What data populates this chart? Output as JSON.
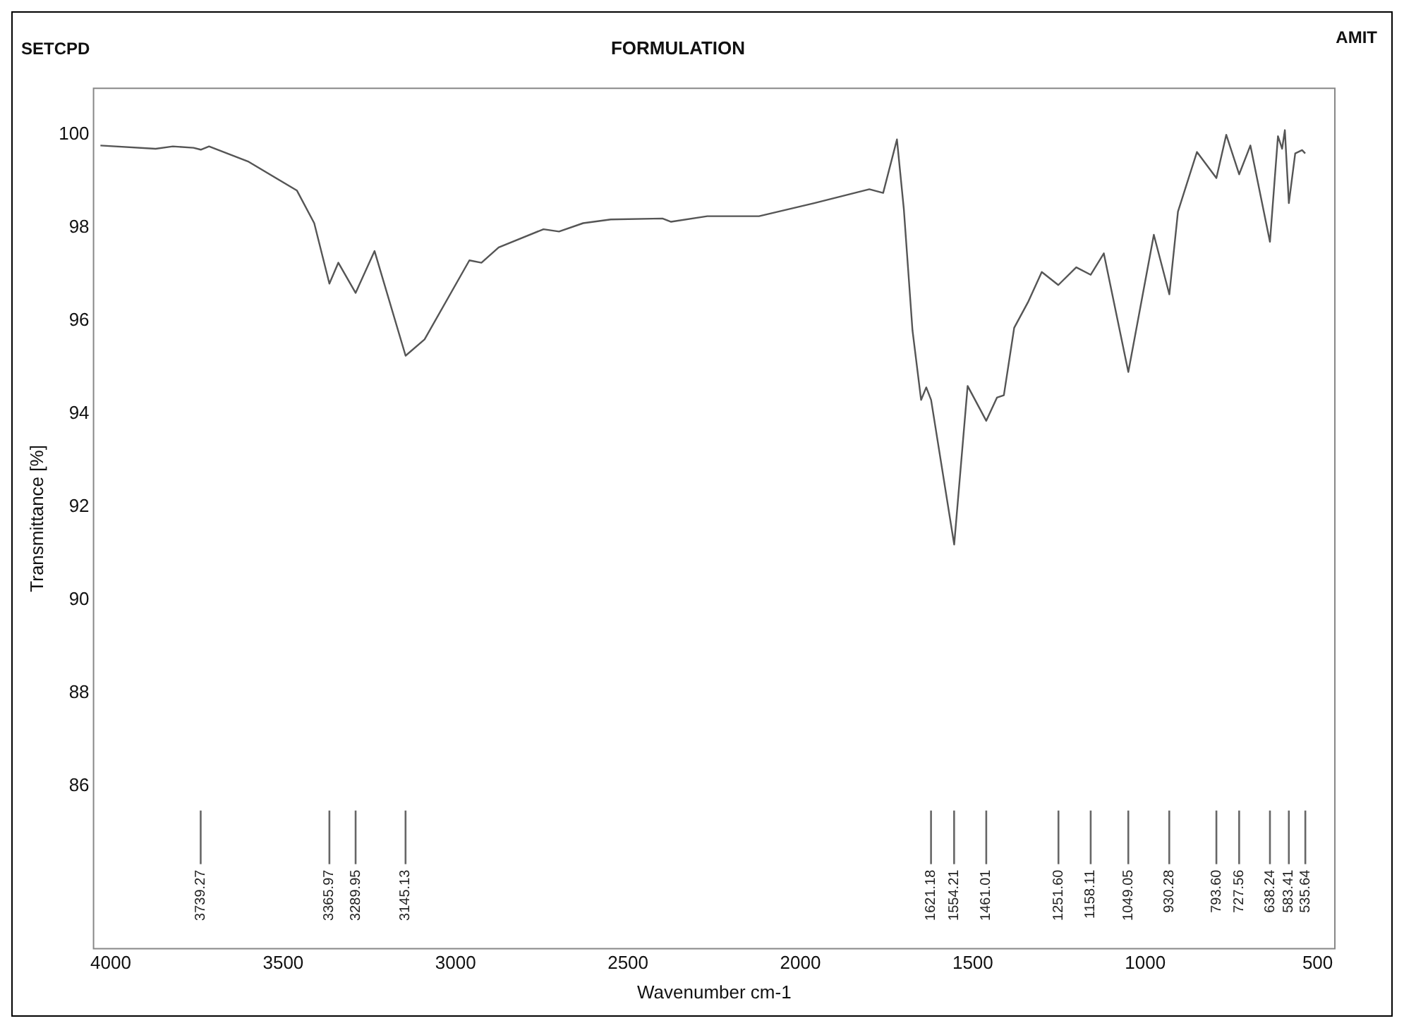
{
  "chart_data": {
    "type": "line",
    "title": "FORMULATION",
    "xlabel": "Wavenumber cm-1",
    "ylabel": "Transmittance [%]",
    "xlim": [
      4050,
      450
    ],
    "xticks": [
      4000,
      3500,
      3000,
      2500,
      2000,
      1500,
      1000,
      500
    ],
    "ylim": [
      82.5,
      101
    ],
    "yticks": [
      86,
      88,
      90,
      92,
      94,
      96,
      98,
      100
    ],
    "marker": "none",
    "line_style": "solid",
    "series": [
      {
        "color": "#555555",
        "x": [
          4030,
          3870,
          3820,
          3760,
          3739,
          3715,
          3600,
          3460,
          3410,
          3366,
          3340,
          3290,
          3235,
          3145,
          3090,
          2960,
          2925,
          2875,
          2745,
          2700,
          2630,
          2550,
          2400,
          2375,
          2270,
          2120,
          1960,
          1800,
          1760,
          1720,
          1700,
          1675,
          1650,
          1635,
          1621,
          1554,
          1515,
          1461,
          1430,
          1410,
          1380,
          1340,
          1300,
          1252,
          1200,
          1158,
          1120,
          1049,
          975,
          930,
          905,
          850,
          793.6,
          765,
          727.56,
          695,
          638.24,
          615,
          603,
          595,
          583.41,
          565,
          545,
          536
        ],
        "values": [
          99.77,
          99.7,
          99.75,
          99.72,
          99.68,
          99.75,
          99.42,
          98.8,
          98.1,
          96.8,
          97.25,
          96.6,
          97.5,
          95.25,
          95.6,
          97.3,
          97.25,
          97.58,
          97.97,
          97.92,
          98.1,
          98.18,
          98.2,
          98.13,
          98.25,
          98.25,
          98.53,
          98.83,
          98.75,
          99.9,
          98.4,
          95.8,
          94.3,
          94.57,
          94.3,
          91.19,
          94.6,
          93.85,
          94.35,
          94.4,
          95.85,
          96.4,
          97.05,
          96.77,
          97.15,
          96.99,
          97.45,
          94.9,
          97.85,
          96.57,
          98.35,
          99.63,
          99.07,
          100.0,
          99.15,
          99.77,
          97.7,
          99.97,
          99.7,
          100.1,
          98.53,
          99.6,
          99.67,
          99.6
        ]
      }
    ],
    "annotations": [
      "SETCPD",
      "AMIT",
      {
        "text": "3739.27",
        "x": 3739.27
      },
      {
        "text": "3365.97",
        "x": 3365.97
      },
      {
        "text": "3289.95",
        "x": 3289.95
      },
      {
        "text": "3145.13",
        "x": 3145.13
      },
      {
        "text": "1621.18",
        "x": 1621.18
      },
      {
        "text": "1554.21",
        "x": 1554.21
      },
      {
        "text": "1461.01",
        "x": 1461.01
      },
      {
        "text": "1251.60",
        "x": 1251.6
      },
      {
        "text": "1158.11",
        "x": 1158.11
      },
      {
        "text": "1049.05",
        "x": 1049.05
      },
      {
        "text": "930.28",
        "x": 930.28
      },
      {
        "text": "793.60",
        "x": 793.6
      },
      {
        "text": "727.56",
        "x": 727.56
      },
      {
        "text": "638.24",
        "x": 638.24
      },
      {
        "text": "583.41",
        "x": 583.41
      },
      {
        "text": "535.64",
        "x": 535.64
      }
    ]
  }
}
